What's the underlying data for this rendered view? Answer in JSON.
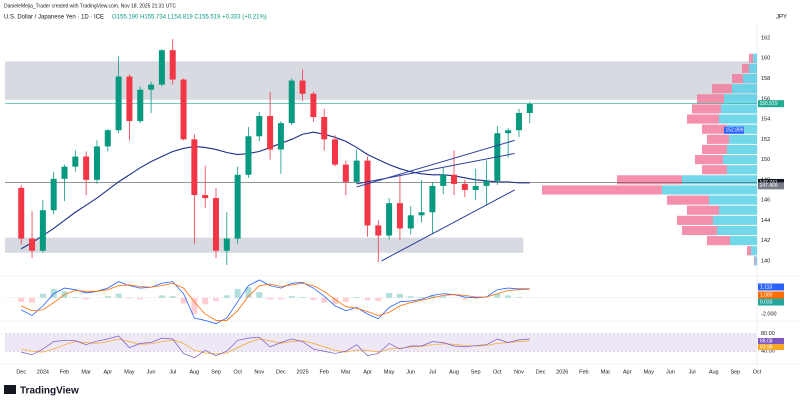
{
  "header": {
    "credit": "DanieleMejia_Trader created with TradingView.com, Nov 18, 2025 21:31 UTC",
    "symbol": "U.S. Dollar / Japanese Yen · 1D · ICE",
    "ohlc": "O155.190 H155.734 L154.819 C155.519 +0.333 (+0.21%)",
    "currency": "JPY"
  },
  "footer": {
    "logo": "TradingView"
  },
  "chart_data": {
    "type": "candlestick",
    "categories": [
      null,
      null,
      null,
      null,
      null,
      null,
      null,
      null,
      null,
      null,
      null,
      null,
      null,
      null,
      null,
      null,
      null,
      null,
      null,
      null,
      null,
      null,
      null,
      null,
      null,
      null,
      null,
      null,
      null,
      null,
      null,
      null,
      null,
      null,
      null,
      null,
      null,
      null,
      null,
      null,
      null,
      null,
      null,
      null,
      null,
      null,
      null,
      null
    ],
    "open": [
      147.2,
      142.2,
      141.0,
      145.0,
      148.1,
      149.3,
      150.3,
      148.0,
      151.3,
      152.9,
      158.2,
      153.8,
      156.9,
      157.4,
      160.8,
      157.9,
      152.0,
      146.5,
      146.2,
      141.0,
      142.2,
      148.5,
      152.3,
      154.3,
      151.0,
      153.6,
      157.8,
      156.5,
      154.2,
      152.0,
      149.5,
      147.8,
      149.9,
      143.5,
      142.5,
      145.7,
      143.2,
      144.5,
      144.8,
      147.4,
      148.5,
      147.6,
      147.0,
      147.4,
      147.9,
      152.6,
      152.9,
      154.6
    ],
    "high": [
      147.5,
      144.9,
      146.0,
      148.8,
      149.5,
      150.9,
      150.8,
      151.9,
      153.0,
      160.2,
      158.4,
      157.2,
      157.7,
      160.9,
      161.9,
      158.0,
      152.5,
      149.4,
      147.2,
      144.8,
      149.3,
      153.2,
      154.7,
      156.7,
      153.8,
      158.0,
      158.9,
      156.7,
      155.0,
      152.4,
      149.9,
      151.0,
      150.3,
      144.0,
      146.2,
      148.6,
      145.4,
      148.0,
      147.8,
      149.2,
      150.9,
      148.0,
      149.1,
      149.9,
      153.3,
      153.1,
      155.0,
      155.7
    ],
    "low": [
      141.6,
      140.3,
      140.8,
      144.6,
      145.9,
      148.8,
      146.5,
      147.6,
      150.8,
      152.6,
      151.9,
      153.6,
      154.6,
      157.2,
      157.4,
      151.9,
      141.7,
      145.2,
      140.3,
      139.6,
      141.7,
      148.2,
      151.8,
      150.0,
      148.6,
      153.4,
      155.8,
      153.7,
      150.9,
      149.3,
      146.5,
      147.6,
      142.4,
      139.9,
      142.1,
      142.1,
      142.6,
      143.8,
      142.7,
      146.6,
      146.5,
      146.3,
      146.0,
      145.5,
      147.5,
      150.2,
      152.2,
      153.6
    ],
    "close": [
      142.2,
      141.0,
      145.0,
      148.1,
      149.3,
      150.3,
      148.0,
      151.3,
      152.9,
      158.2,
      153.8,
      156.9,
      157.4,
      160.8,
      157.9,
      152.0,
      146.5,
      146.2,
      141.0,
      142.2,
      148.5,
      152.3,
      154.3,
      151.0,
      153.6,
      157.8,
      156.5,
      154.2,
      152.0,
      149.5,
      147.8,
      149.9,
      143.5,
      142.5,
      145.7,
      143.2,
      144.5,
      144.8,
      147.4,
      148.5,
      147.6,
      147.0,
      147.4,
      147.9,
      152.6,
      152.9,
      154.6,
      155.5
    ],
    "up_color": "#089981",
    "down_color": "#f23645",
    "moving_average": {
      "color": "#1b2f8a",
      "values": [
        141.2,
        141.8,
        142.5,
        143.2,
        144.0,
        144.8,
        145.5,
        146.2,
        147.0,
        147.8,
        148.5,
        149.2,
        149.8,
        150.3,
        150.8,
        151.1,
        151.3,
        151.2,
        151.0,
        150.7,
        150.5,
        150.6,
        150.8,
        151.2,
        151.6,
        152.0,
        152.5,
        152.7,
        152.5,
        152.2,
        151.8,
        151.2,
        150.5,
        150.0,
        149.5,
        149.1,
        148.8,
        148.6,
        148.5,
        148.5,
        148.4,
        148.2,
        148.0,
        147.9,
        147.8,
        147.8,
        147.7,
        147.7
      ]
    },
    "zones": [
      {
        "low": 155.9,
        "high": 159.7,
        "x_end": 68
      },
      {
        "low": 140.8,
        "high": 142.3,
        "x_end": 46.4
      }
    ],
    "trendlines": [
      {
        "x": [
          33.3,
          45.6
        ],
        "y": [
          140.0,
          147.0
        ]
      },
      {
        "x": [
          31.0,
          45.6
        ],
        "y": [
          147.6,
          150.6
        ]
      },
      {
        "x": [
          31.0,
          45.6
        ],
        "y": [
          147.3,
          151.9
        ]
      }
    ],
    "trend_color": "#2a3f9e",
    "price_lines": [
      {
        "value": 155.519,
        "color": "#22ab94"
      },
      {
        "value": 147.741,
        "color": "#555"
      }
    ],
    "price_labels": [
      {
        "value": 155.519,
        "color": "#22ab94"
      },
      {
        "value": 152.899,
        "color": "#2962ff"
      },
      {
        "value": 147.741,
        "color": "#131722"
      },
      {
        "value": 147.409,
        "color": "#787b86"
      }
    ],
    "volume_profile": {
      "prices": [
        160,
        159,
        158,
        157,
        156,
        155,
        154,
        153,
        152,
        151,
        150,
        149,
        148,
        147,
        146,
        145,
        144,
        143,
        142,
        141,
        140
      ],
      "up": [
        4,
        8,
        14,
        25,
        33,
        36,
        38,
        30,
        28,
        30,
        34,
        30,
        75,
        95,
        48,
        38,
        44,
        40,
        27,
        6,
        2
      ],
      "down": [
        4,
        7,
        11,
        20,
        27,
        29,
        32,
        25,
        22,
        25,
        28,
        25,
        65,
        120,
        42,
        32,
        36,
        35,
        23,
        4,
        1
      ],
      "up_color": "#5ad0e6",
      "down_color": "#f27c9e"
    },
    "xlim": [
      -1.5,
      68
    ],
    "xticks": [
      {
        "value": 0,
        "label": "Dec"
      },
      {
        "value": 2,
        "label": "2024"
      },
      {
        "value": 4,
        "label": "Feb"
      },
      {
        "value": 6,
        "label": "Mar"
      },
      {
        "value": 8,
        "label": "Apr"
      },
      {
        "value": 10,
        "label": "May"
      },
      {
        "value": 12,
        "label": "Jun"
      },
      {
        "value": 14,
        "label": "Jul"
      },
      {
        "value": 16,
        "label": "Aug"
      },
      {
        "value": 18,
        "label": "Sep"
      },
      {
        "value": 20,
        "label": "Oct"
      },
      {
        "value": 22,
        "label": "Nov"
      },
      {
        "value": 24,
        "label": "Dec"
      },
      {
        "value": 26,
        "label": "2025"
      },
      {
        "value": 28,
        "label": "Feb"
      },
      {
        "value": 30,
        "label": "Mar"
      },
      {
        "value": 32,
        "label": "Apr"
      },
      {
        "value": 34,
        "label": "May"
      },
      {
        "value": 36,
        "label": "Jun"
      },
      {
        "value": 38,
        "label": "Jul"
      },
      {
        "value": 40,
        "label": "Aug"
      },
      {
        "value": 42,
        "label": "Sep"
      },
      {
        "value": 44,
        "label": "Oct"
      },
      {
        "value": 46,
        "label": "Nov"
      },
      {
        "value": 48,
        "label": "Dec"
      },
      {
        "value": 50,
        "label": "2026"
      },
      {
        "value": 52,
        "label": "Feb"
      },
      {
        "value": 54,
        "label": "Mar"
      },
      {
        "value": 56,
        "label": "Apr"
      },
      {
        "value": 58,
        "label": "May"
      },
      {
        "value": 60,
        "label": "Jun"
      },
      {
        "value": 62,
        "label": "Jul"
      },
      {
        "value": 64,
        "label": "Aug"
      },
      {
        "value": 66,
        "label": "Sep"
      },
      {
        "value": 68,
        "label": "Oct"
      }
    ],
    "ylim": [
      139.1,
      162.99
    ],
    "yticks": [
      140,
      142,
      144,
      146,
      148,
      150,
      152,
      154,
      156,
      158,
      160,
      162
    ],
    "macd": {
      "ylim": [
        -2.5,
        2.2
      ],
      "yticks": [
        {
          "value": -2,
          "label": "-2.000"
        }
      ],
      "macd": {
        "color": "#2962ff",
        "values": [
          -1.5,
          -2.2,
          -1.0,
          0.5,
          1.2,
          1.0,
          0.6,
          0.8,
          1.2,
          2.0,
          1.5,
          1.2,
          1.3,
          1.8,
          2.0,
          0.5,
          -2.5,
          -2.8,
          -3.2,
          -2.5,
          -0.5,
          1.5,
          2.2,
          1.5,
          1.2,
          1.8,
          1.9,
          1.2,
          0.2,
          -1.0,
          -1.6,
          -1.2,
          -2.0,
          -2.6,
          -1.2,
          -0.5,
          -0.4,
          -0.2,
          0.3,
          0.5,
          0.4,
          0.1,
          0.0,
          0.1,
          1.0,
          1.2,
          1.1,
          1.113
        ]
      },
      "signal": {
        "color": "#ff6d00",
        "values": [
          -1.0,
          -1.6,
          -1.5,
          -0.6,
          0.4,
          0.9,
          0.8,
          0.8,
          1.0,
          1.5,
          1.6,
          1.4,
          1.3,
          1.5,
          1.8,
          1.2,
          -0.5,
          -2.0,
          -2.8,
          -2.8,
          -1.6,
          0.2,
          1.5,
          1.7,
          1.4,
          1.6,
          1.8,
          1.5,
          0.8,
          -0.2,
          -1.1,
          -1.3,
          -1.7,
          -2.2,
          -1.8,
          -1.0,
          -0.6,
          -0.3,
          0.0,
          0.3,
          0.4,
          0.3,
          0.1,
          0.1,
          0.5,
          0.9,
          1.0,
          1.08
        ],
        "last_label": "1.080"
      },
      "histogram": {
        "value": 0.033,
        "label": "0.033",
        "color": "#26a69a"
      }
    },
    "rsi": {
      "ylim": [
        20,
        100
      ],
      "yticks": [
        {
          "value": 80,
          "label": "80.00"
        },
        {
          "value": 40,
          "label": "40.00"
        }
      ],
      "band_color": "#ede7f6",
      "rsi": {
        "color": "#7e57c2",
        "values": [
          38,
          32,
          45,
          62,
          65,
          64,
          55,
          63,
          68,
          75,
          48,
          58,
          60,
          70,
          68,
          35,
          25,
          42,
          30,
          40,
          65,
          70,
          72,
          50,
          60,
          68,
          62,
          45,
          40,
          35,
          40,
          55,
          30,
          35,
          58,
          45,
          52,
          52,
          62,
          60,
          52,
          50,
          53,
          55,
          68,
          60,
          66,
          68.08
        ]
      },
      "ma": {
        "color": "#f9a825",
        "values": [
          45,
          40,
          38,
          45,
          55,
          62,
          60,
          58,
          62,
          68,
          62,
          56,
          57,
          62,
          66,
          58,
          42,
          36,
          34,
          36,
          48,
          60,
          68,
          64,
          58,
          62,
          64,
          58,
          50,
          42,
          38,
          43,
          42,
          38,
          45,
          47,
          50,
          51,
          55,
          57,
          56,
          53,
          52,
          53,
          58,
          60,
          62,
          63.98
        ]
      }
    }
  }
}
